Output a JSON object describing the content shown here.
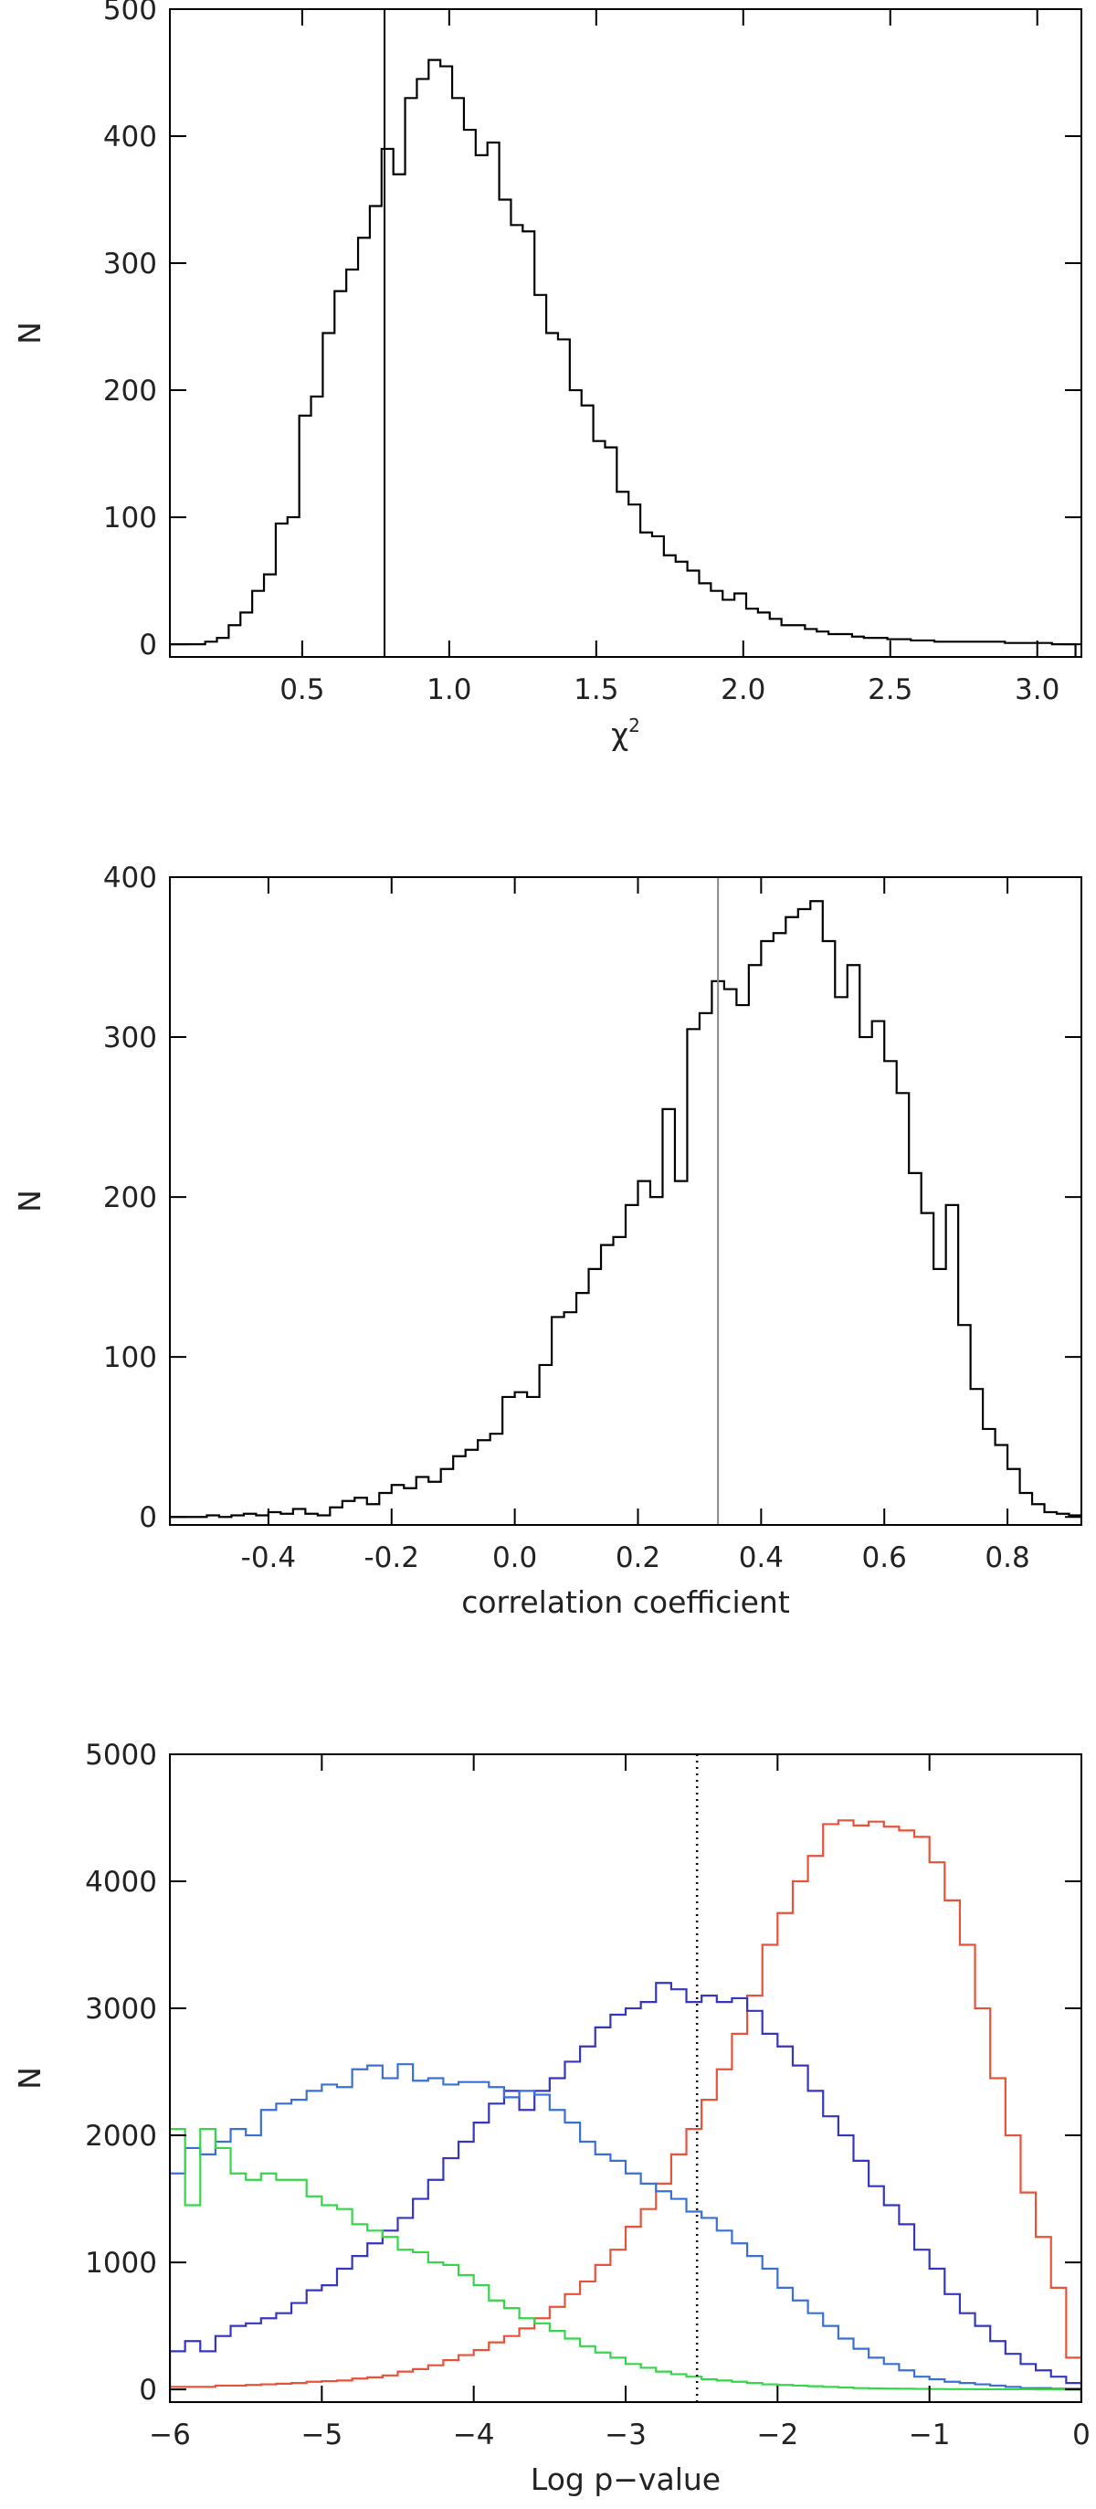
{
  "chart_data": [
    {
      "type": "histogram",
      "title": "",
      "xlabel": "χ",
      "xlabel_superscript": "2",
      "ylabel": "N",
      "xlim": [
        0.05,
        3.15
      ],
      "ylim": [
        -10,
        500
      ],
      "xticks": [
        0.5,
        1.0,
        1.5,
        2.0,
        2.5,
        3.0
      ],
      "xtick_labels": [
        "0.5",
        "1.0",
        "1.5",
        "2.0",
        "2.5",
        "3.0"
      ],
      "yticks": [
        0,
        100,
        200,
        300,
        400,
        500
      ],
      "ytick_labels": [
        "0",
        "100",
        "200",
        "300",
        "400",
        "500"
      ],
      "grid": false,
      "reference_line": {
        "x": 0.78,
        "style": "solid",
        "color": "#000000"
      },
      "series": [
        {
          "color": "#000000",
          "bin_edges": [
            0.05,
            0.09,
            0.13,
            0.17,
            0.21,
            0.25,
            0.29,
            0.33,
            0.37,
            0.41,
            0.45,
            0.49,
            0.53,
            0.57,
            0.61,
            0.65,
            0.69,
            0.73,
            0.77,
            0.81,
            0.85,
            0.89,
            0.93,
            0.97,
            1.01,
            1.05,
            1.09,
            1.13,
            1.17,
            1.21,
            1.25,
            1.29,
            1.33,
            1.37,
            1.41,
            1.45,
            1.49,
            1.53,
            1.57,
            1.61,
            1.65,
            1.69,
            1.73,
            1.77,
            1.81,
            1.85,
            1.89,
            1.93,
            1.97,
            2.01,
            2.05,
            2.09,
            2.13,
            2.17,
            2.21,
            2.25,
            2.29,
            2.33,
            2.37,
            2.41,
            2.45,
            2.49,
            2.53,
            2.57,
            2.61,
            2.65,
            2.69,
            2.73,
            2.77,
            2.81,
            2.85,
            2.89,
            2.93,
            2.97,
            3.01,
            3.05,
            3.09,
            3.13
          ],
          "counts": [
            0,
            0,
            0,
            2,
            5,
            15,
            25,
            42,
            55,
            95,
            100,
            180,
            195,
            245,
            278,
            295,
            320,
            345,
            390,
            370,
            430,
            445,
            460,
            455,
            430,
            405,
            385,
            395,
            350,
            330,
            325,
            275,
            245,
            240,
            200,
            188,
            160,
            155,
            120,
            110,
            88,
            85,
            70,
            65,
            58,
            48,
            42,
            35,
            40,
            28,
            25,
            20,
            15,
            15,
            12,
            10,
            8,
            8,
            6,
            5,
            5,
            4,
            4,
            3,
            3,
            2,
            2,
            2,
            2,
            2,
            2,
            1,
            1,
            1,
            1,
            0,
            0
          ]
        }
      ]
    },
    {
      "type": "histogram",
      "title": "",
      "xlabel": "correlation coefficient",
      "ylabel": "N",
      "xlim": [
        -0.56,
        0.92
      ],
      "ylim": [
        -5,
        400
      ],
      "xticks": [
        -0.4,
        -0.2,
        0.0,
        0.2,
        0.4,
        0.6,
        0.8
      ],
      "xtick_labels": [
        "-0.4",
        "-0.2",
        "0.0",
        "0.2",
        "0.4",
        "0.6",
        "0.8"
      ],
      "yticks": [
        0,
        100,
        200,
        300,
        400
      ],
      "ytick_labels": [
        "0",
        "100",
        "200",
        "300",
        "400"
      ],
      "grid": false,
      "reference_line": {
        "x": 0.33,
        "style": "solid",
        "color": "#888888"
      },
      "series": [
        {
          "color": "#000000",
          "bin_edges": [
            -0.56,
            -0.54,
            -0.52,
            -0.5,
            -0.48,
            -0.46,
            -0.44,
            -0.42,
            -0.4,
            -0.38,
            -0.36,
            -0.34,
            -0.32,
            -0.3,
            -0.28,
            -0.26,
            -0.24,
            -0.22,
            -0.2,
            -0.18,
            -0.16,
            -0.14,
            -0.12,
            -0.1,
            -0.08,
            -0.06,
            -0.04,
            -0.02,
            0.0,
            0.02,
            0.04,
            0.06,
            0.08,
            0.1,
            0.12,
            0.14,
            0.16,
            0.18,
            0.2,
            0.22,
            0.24,
            0.26,
            0.28,
            0.3,
            0.32,
            0.34,
            0.36,
            0.38,
            0.4,
            0.42,
            0.44,
            0.46,
            0.48,
            0.5,
            0.52,
            0.54,
            0.56,
            0.58,
            0.6,
            0.62,
            0.64,
            0.66,
            0.68,
            0.7,
            0.72,
            0.74,
            0.76,
            0.78,
            0.8,
            0.82,
            0.84,
            0.86,
            0.88,
            0.9,
            0.92
          ],
          "counts": [
            0,
            0,
            0,
            1,
            0,
            1,
            2,
            1,
            3,
            2,
            5,
            2,
            1,
            6,
            10,
            12,
            8,
            15,
            20,
            18,
            25,
            22,
            30,
            38,
            42,
            48,
            52,
            75,
            78,
            75,
            95,
            125,
            128,
            140,
            155,
            170,
            175,
            195,
            210,
            200,
            255,
            210,
            305,
            315,
            335,
            330,
            320,
            345,
            360,
            365,
            375,
            380,
            385,
            360,
            325,
            345,
            300,
            310,
            285,
            265,
            215,
            190,
            155,
            195,
            120,
            80,
            55,
            45,
            30,
            15,
            8,
            3,
            2,
            1
          ]
        }
      ]
    },
    {
      "type": "histogram",
      "title": "",
      "xlabel": "Log p−value",
      "ylabel": "N",
      "xlim": [
        -6,
        0
      ],
      "ylim": [
        -100,
        5000
      ],
      "xticks": [
        -6,
        -5,
        -4,
        -3,
        -2,
        -1,
        0
      ],
      "xtick_labels": [
        "−6",
        "−5",
        "−4",
        "−3",
        "−2",
        "−1",
        "0"
      ],
      "yticks": [
        0,
        1000,
        2000,
        3000,
        4000,
        5000
      ],
      "ytick_labels": [
        "0",
        "1000",
        "2000",
        "3000",
        "4000",
        "5000"
      ],
      "grid": false,
      "reference_line": {
        "x": -2.53,
        "style": "dotted",
        "color": "#000000"
      },
      "series": [
        {
          "color": "#e8513a",
          "bin_edges": [
            -6.0,
            -5.9,
            -5.8,
            -5.7,
            -5.6,
            -5.5,
            -5.4,
            -5.3,
            -5.2,
            -5.1,
            -5.0,
            -4.9,
            -4.8,
            -4.7,
            -4.6,
            -4.5,
            -4.4,
            -4.3,
            -4.2,
            -4.1,
            -4.0,
            -3.9,
            -3.8,
            -3.7,
            -3.6,
            -3.5,
            -3.4,
            -3.3,
            -3.2,
            -3.1,
            -3.0,
            -2.9,
            -2.8,
            -2.7,
            -2.6,
            -2.5,
            -2.4,
            -2.3,
            -2.2,
            -2.1,
            -2.0,
            -1.9,
            -1.8,
            -1.7,
            -1.6,
            -1.5,
            -1.4,
            -1.3,
            -1.2,
            -1.1,
            -1.0,
            -0.9,
            -0.8,
            -0.7,
            -0.6,
            -0.5,
            -0.4,
            -0.3,
            -0.2,
            -0.1,
            0.0
          ],
          "counts": [
            20,
            20,
            20,
            30,
            30,
            35,
            40,
            45,
            50,
            60,
            65,
            70,
            85,
            95,
            110,
            140,
            160,
            190,
            230,
            270,
            310,
            370,
            420,
            480,
            560,
            650,
            750,
            850,
            980,
            1100,
            1280,
            1420,
            1620,
            1850,
            2050,
            2280,
            2520,
            2800,
            3100,
            3500,
            3750,
            4000,
            4200,
            4450,
            4480,
            4440,
            4470,
            4430,
            4400,
            4350,
            4150,
            3850,
            3500,
            3000,
            2450,
            2000,
            1550,
            1200,
            800,
            250
          ]
        },
        {
          "color": "#3535c0",
          "bin_edges": [
            -6.0,
            -5.9,
            -5.8,
            -5.7,
            -5.6,
            -5.5,
            -5.4,
            -5.3,
            -5.2,
            -5.1,
            -5.0,
            -4.9,
            -4.8,
            -4.7,
            -4.6,
            -4.5,
            -4.4,
            -4.3,
            -4.2,
            -4.1,
            -4.0,
            -3.9,
            -3.8,
            -3.7,
            -3.6,
            -3.5,
            -3.4,
            -3.3,
            -3.2,
            -3.1,
            -3.0,
            -2.9,
            -2.8,
            -2.7,
            -2.6,
            -2.5,
            -2.4,
            -2.3,
            -2.2,
            -2.1,
            -2.0,
            -1.9,
            -1.8,
            -1.7,
            -1.6,
            -1.5,
            -1.4,
            -1.3,
            -1.2,
            -1.1,
            -1.0,
            -0.9,
            -0.8,
            -0.7,
            -0.6,
            -0.5,
            -0.4,
            -0.3,
            -0.2,
            -0.1,
            0.0
          ],
          "counts": [
            300,
            380,
            300,
            420,
            500,
            520,
            560,
            600,
            680,
            780,
            820,
            950,
            1050,
            1150,
            1250,
            1350,
            1500,
            1650,
            1820,
            1950,
            2100,
            2250,
            2350,
            2200,
            2350,
            2450,
            2580,
            2700,
            2850,
            2950,
            3000,
            3050,
            3200,
            3150,
            3050,
            3100,
            3050,
            3080,
            2980,
            2800,
            2700,
            2550,
            2350,
            2150,
            2000,
            1800,
            1600,
            1450,
            1300,
            1100,
            950,
            750,
            600,
            500,
            380,
            280,
            200,
            150,
            100,
            50
          ]
        },
        {
          "color": "#3a70d6",
          "bin_edges": [
            -6.0,
            -5.9,
            -5.8,
            -5.7,
            -5.6,
            -5.5,
            -5.4,
            -5.3,
            -5.2,
            -5.1,
            -5.0,
            -4.9,
            -4.8,
            -4.7,
            -4.6,
            -4.5,
            -4.4,
            -4.3,
            -4.2,
            -4.1,
            -4.0,
            -3.9,
            -3.8,
            -3.7,
            -3.6,
            -3.5,
            -3.4,
            -3.3,
            -3.2,
            -3.1,
            -3.0,
            -2.9,
            -2.8,
            -2.7,
            -2.6,
            -2.5,
            -2.4,
            -2.3,
            -2.2,
            -2.1,
            -2.0,
            -1.9,
            -1.8,
            -1.7,
            -1.6,
            -1.5,
            -1.4,
            -1.3,
            -1.2,
            -1.1,
            -1.0,
            -0.9,
            -0.8,
            -0.7,
            -0.6,
            -0.5,
            -0.4,
            -0.3,
            -0.2,
            -0.1,
            0.0
          ],
          "counts": [
            1700,
            1900,
            1850,
            1950,
            2050,
            2000,
            2200,
            2250,
            2280,
            2350,
            2400,
            2380,
            2520,
            2550,
            2450,
            2560,
            2430,
            2450,
            2400,
            2420,
            2420,
            2380,
            2300,
            2350,
            2320,
            2200,
            2100,
            1950,
            1850,
            1800,
            1700,
            1620,
            1560,
            1500,
            1400,
            1350,
            1250,
            1150,
            1050,
            950,
            800,
            700,
            600,
            500,
            400,
            320,
            250,
            200,
            150,
            100,
            80,
            60,
            50,
            40,
            30,
            20,
            10,
            10,
            5,
            5
          ]
        },
        {
          "color": "#35d64a",
          "bin_edges": [
            -6.0,
            -5.9,
            -5.8,
            -5.7,
            -5.6,
            -5.5,
            -5.4,
            -5.3,
            -5.2,
            -5.1,
            -5.0,
            -4.9,
            -4.8,
            -4.7,
            -4.6,
            -4.5,
            -4.4,
            -4.3,
            -4.2,
            -4.1,
            -4.0,
            -3.9,
            -3.8,
            -3.7,
            -3.6,
            -3.5,
            -3.4,
            -3.3,
            -3.2,
            -3.1,
            -3.0,
            -2.9,
            -2.8,
            -2.7,
            -2.6,
            -2.5,
            -2.4,
            -2.3,
            -2.2,
            -2.1,
            -2.0,
            -1.9,
            -1.8,
            -1.7,
            -1.6,
            -1.5,
            -1.4,
            -1.3,
            -1.2,
            -1.1,
            -1.0,
            -0.9,
            -0.8,
            -0.7,
            -0.6,
            -0.5,
            -0.4,
            -0.3,
            -0.2,
            -0.1,
            0.0
          ],
          "counts": [
            2050,
            1450,
            2050,
            1900,
            1700,
            1650,
            1700,
            1650,
            1650,
            1520,
            1450,
            1420,
            1300,
            1250,
            1200,
            1100,
            1080,
            1000,
            980,
            900,
            820,
            700,
            640,
            560,
            520,
            460,
            400,
            340,
            290,
            250,
            200,
            170,
            140,
            120,
            100,
            80,
            70,
            60,
            50,
            40,
            35,
            30,
            25,
            20,
            15,
            10,
            8,
            6,
            5,
            4,
            3,
            2,
            2,
            1,
            1,
            1,
            1,
            0,
            0,
            0
          ]
        }
      ]
    }
  ]
}
